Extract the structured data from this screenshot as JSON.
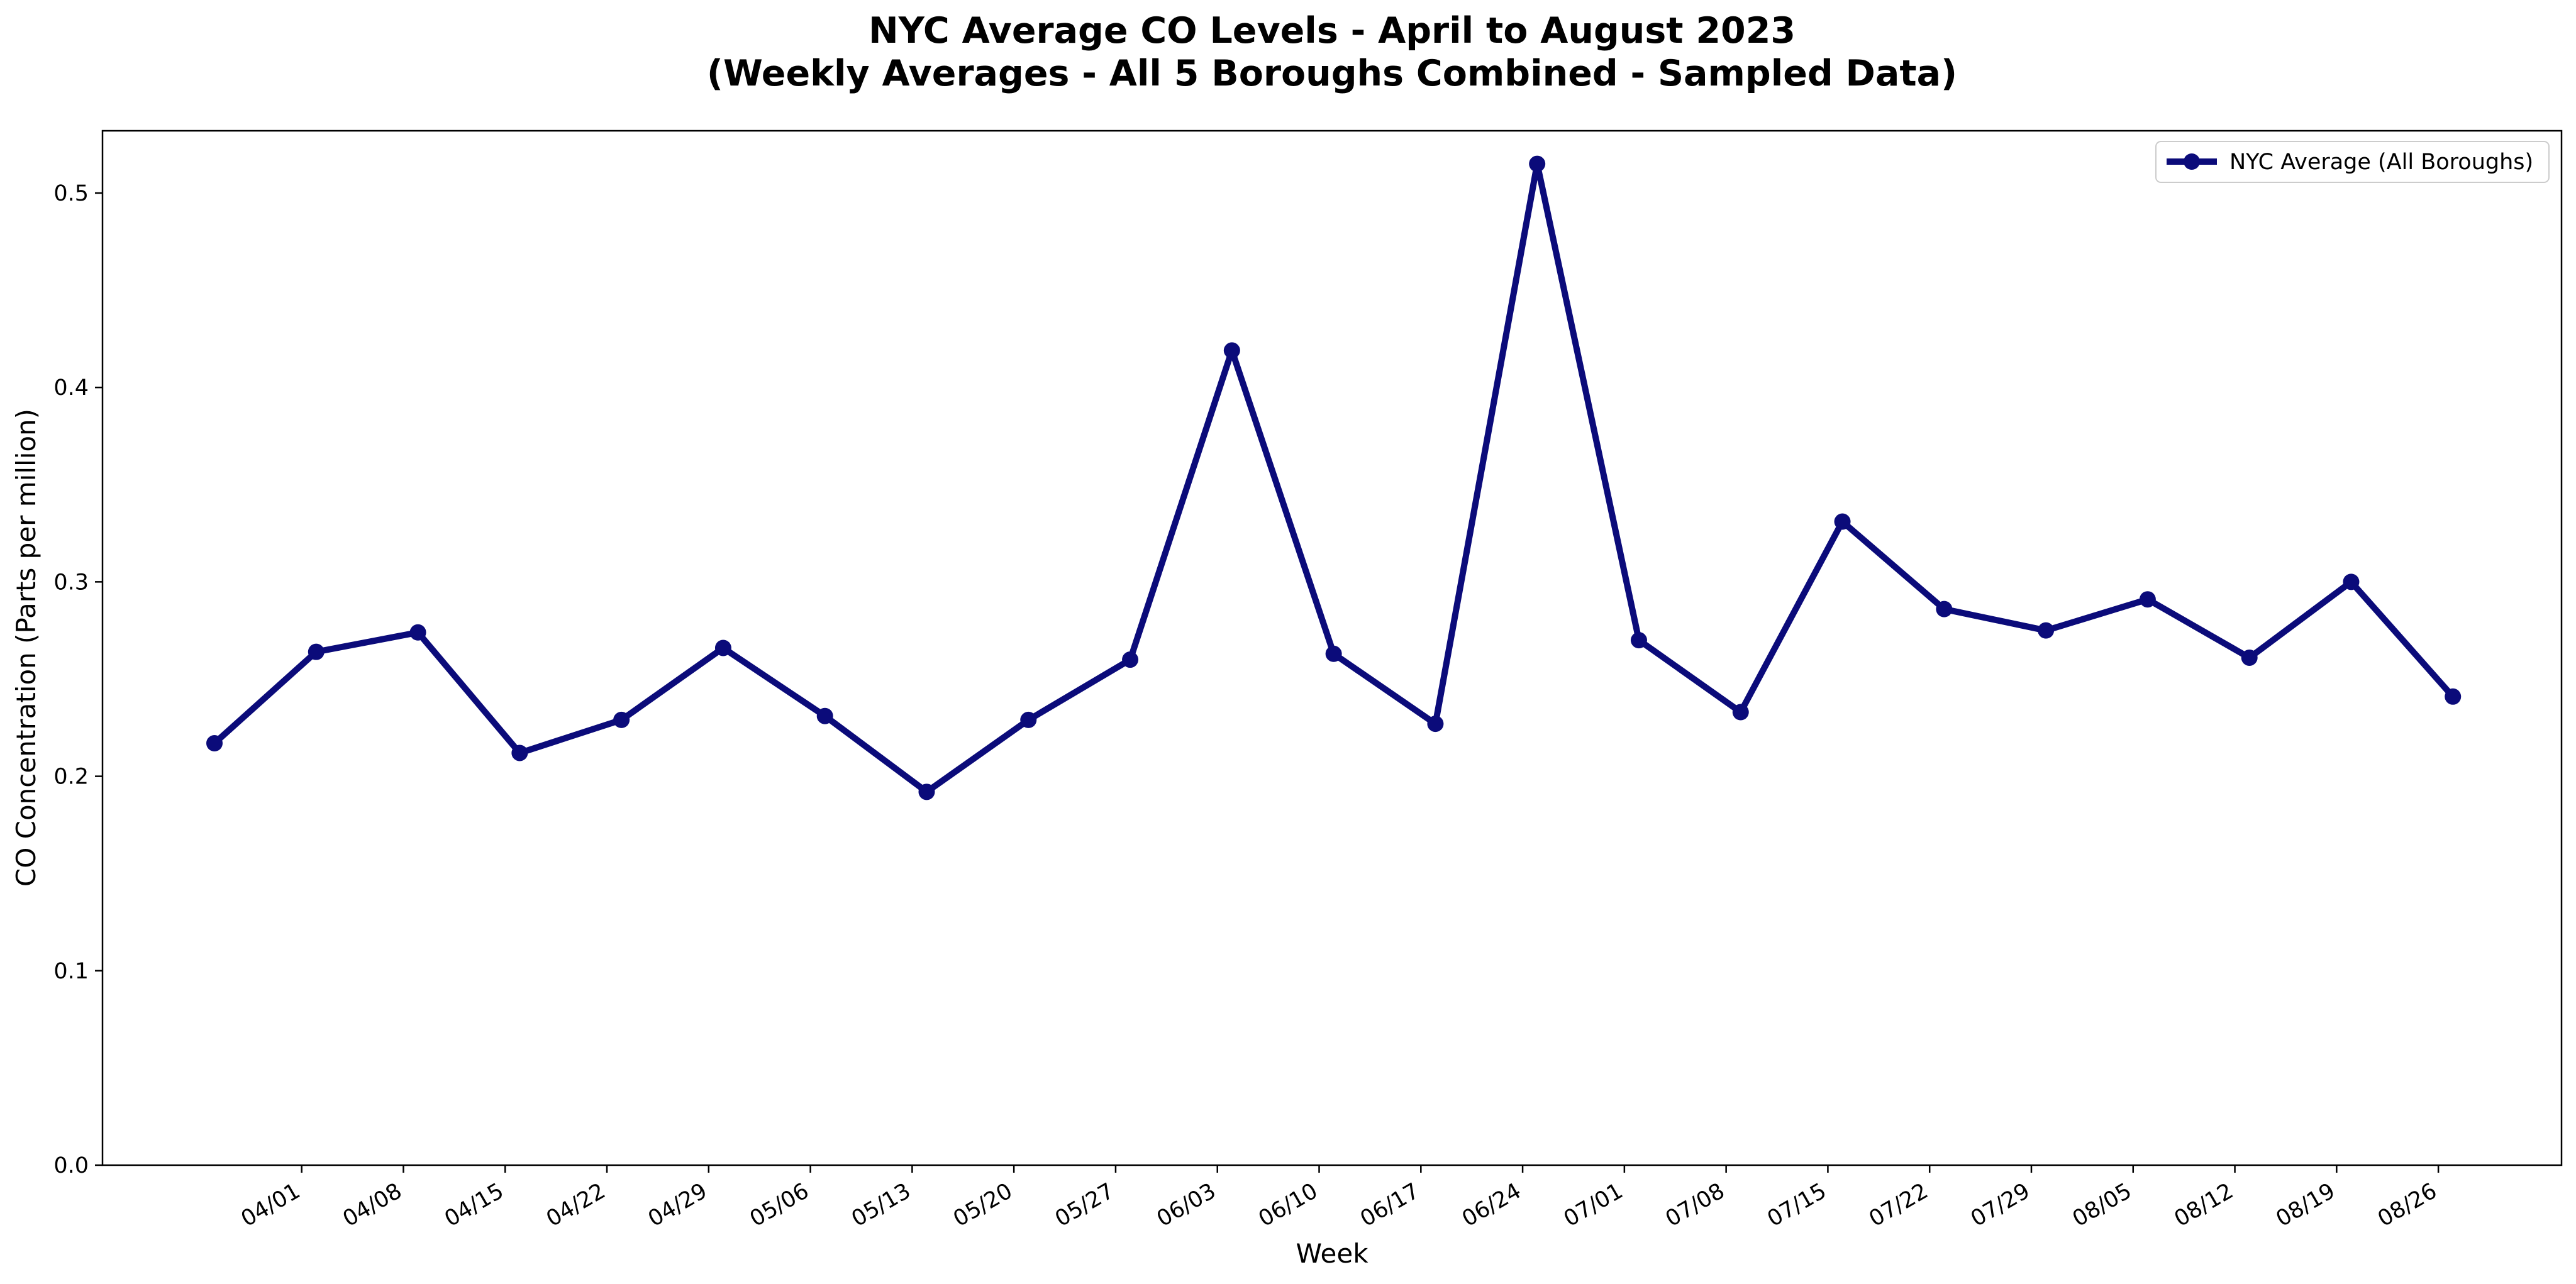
{
  "chart_data": {
    "type": "line",
    "title": "NYC Average CO Levels - April to August 2023",
    "subtitle": "(Weekly Averages - All 5 Boroughs Combined - Sampled Data)",
    "xlabel": "Week",
    "ylabel": "CO Concentration (Parts per million)",
    "x_tick_labels": [
      "04/01",
      "04/08",
      "04/15",
      "04/22",
      "04/29",
      "05/06",
      "05/13",
      "05/20",
      "05/27",
      "06/03",
      "06/10",
      "06/17",
      "06/24",
      "07/01",
      "07/08",
      "07/15",
      "07/22",
      "07/29",
      "08/05",
      "08/12",
      "08/19",
      "08/26"
    ],
    "y_ticks": [
      0.0,
      0.1,
      0.2,
      0.3,
      0.4,
      0.5
    ],
    "y_tick_labels": [
      "0.0",
      "0.1",
      "0.2",
      "0.3",
      "0.4",
      "0.5"
    ],
    "ylim": [
      0,
      0.532
    ],
    "legend_position": "top-right",
    "grid": false,
    "series": [
      {
        "name": "NYC Average (All Boroughs)",
        "color": "#0b0b7a",
        "x": [
          "2023-03-26",
          "2023-04-02",
          "2023-04-09",
          "2023-04-16",
          "2023-04-23",
          "2023-04-30",
          "2023-05-07",
          "2023-05-14",
          "2023-05-21",
          "2023-05-28",
          "2023-06-04",
          "2023-06-11",
          "2023-06-18",
          "2023-06-25",
          "2023-07-02",
          "2023-07-09",
          "2023-07-16",
          "2023-07-23",
          "2023-07-30",
          "2023-08-06",
          "2023-08-13",
          "2023-08-20",
          "2023-08-27"
        ],
        "values": [
          0.217,
          0.264,
          0.274,
          0.212,
          0.229,
          0.266,
          0.231,
          0.192,
          0.229,
          0.26,
          0.419,
          0.263,
          0.227,
          0.515,
          0.27,
          0.233,
          0.331,
          0.286,
          0.275,
          0.291,
          0.261,
          0.3,
          0.241
        ]
      }
    ]
  }
}
